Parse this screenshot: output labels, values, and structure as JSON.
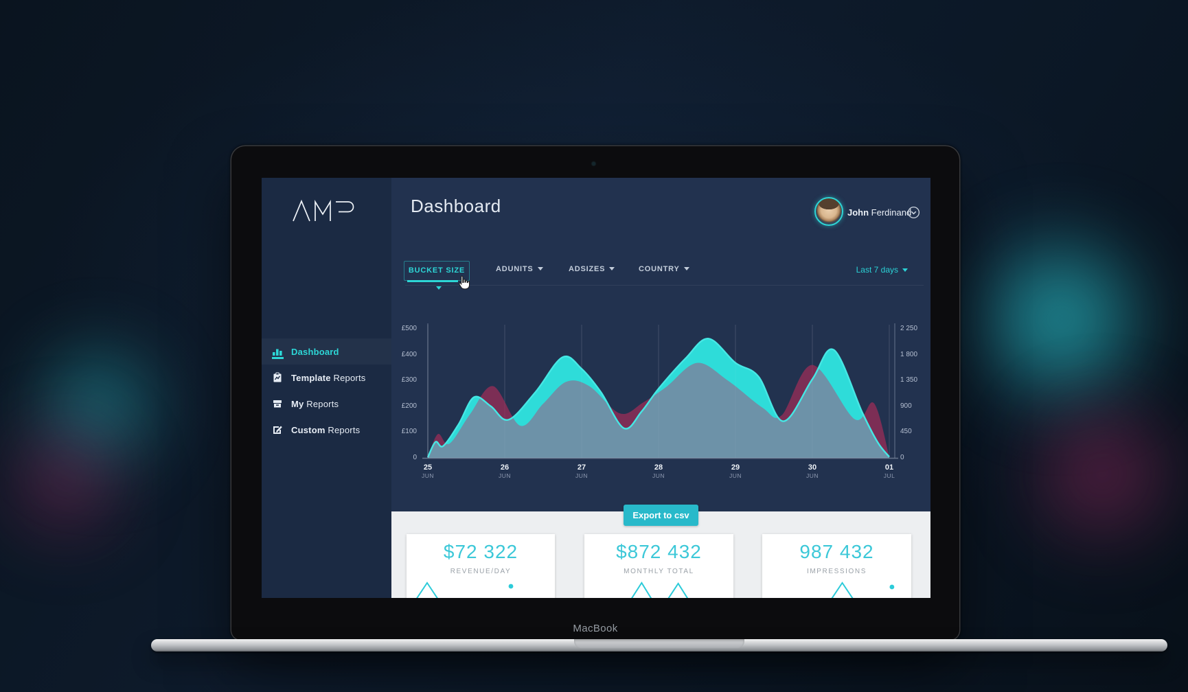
{
  "device": {
    "label": "MacBook"
  },
  "app": {
    "sidebar": {
      "logo": "AMP",
      "items": [
        {
          "icon": "bar-chart-icon",
          "bold": "Dashboard",
          "rest": "",
          "active": true
        },
        {
          "icon": "clipboard-chart-icon",
          "bold": "Template",
          "rest": " Reports",
          "active": false
        },
        {
          "icon": "archive-box-icon",
          "bold": "My",
          "rest": " Reports",
          "active": false
        },
        {
          "icon": "pencil-note-icon",
          "bold": "Custom",
          "rest": " Reports",
          "active": false
        }
      ]
    },
    "header": {
      "title": "Dashboard",
      "user": {
        "first": "John",
        "last": " Ferdinand",
        "menu_icon": "chevron-down-circle-icon"
      }
    },
    "filters": {
      "items": [
        {
          "label": "BUCKET SIZE",
          "active": true
        },
        {
          "label": "ADUNITS",
          "active": false
        },
        {
          "label": "ADSIZES",
          "active": false
        },
        {
          "label": "COUNTRY",
          "active": false
        }
      ],
      "date_range": "Last 7 days"
    },
    "export_label": "Export to csv",
    "stats": [
      {
        "value": "$72 322",
        "label": "REVENUE/DAY",
        "spark": "peak-left-with-dot"
      },
      {
        "value": "$872 432",
        "label": "MONTHLY TOTAL",
        "spark": "double-peak"
      },
      {
        "value": "987 432",
        "label": "IMPRESSIONS",
        "spark": "peak-right-with-dot"
      }
    ]
  },
  "chart_data": {
    "type": "area",
    "title": "",
    "grid": true,
    "legend": false,
    "x_categories": [
      {
        "day": "25",
        "month": "JUN"
      },
      {
        "day": "26",
        "month": "JUN"
      },
      {
        "day": "27",
        "month": "JUN"
      },
      {
        "day": "28",
        "month": "JUN"
      },
      {
        "day": "29",
        "month": "JUN"
      },
      {
        "day": "30",
        "month": "JUN"
      },
      {
        "day": "01",
        "month": "JUL"
      }
    ],
    "y_left_axis": {
      "labels": [
        "£500",
        "£400",
        "£300",
        "£200",
        "£100",
        "0"
      ],
      "max": 500,
      "unit": "£"
    },
    "y_right_axis": {
      "labels": [
        "2 250",
        "1 800",
        "1 350",
        "900",
        "450",
        "0"
      ],
      "max": 2250
    },
    "series": [
      {
        "name": "secondary-magenta",
        "color": "#7c2e55",
        "points": [
          [
            0,
            2
          ],
          [
            0.13,
            92
          ],
          [
            0.28,
            55
          ],
          [
            0.55,
            170
          ],
          [
            0.85,
            278
          ],
          [
            1.2,
            125
          ],
          [
            1.5,
            210
          ],
          [
            1.8,
            295
          ],
          [
            2.1,
            278
          ],
          [
            2.5,
            172
          ],
          [
            2.8,
            215
          ],
          [
            3.1,
            275
          ],
          [
            3.5,
            368
          ],
          [
            3.9,
            300
          ],
          [
            4.35,
            195
          ],
          [
            4.6,
            165
          ],
          [
            5.0,
            360
          ],
          [
            5.55,
            150
          ],
          [
            5.8,
            212
          ],
          [
            6,
            4
          ]
        ]
      },
      {
        "name": "primary-teal",
        "color": "#2edcd9",
        "line_color": "#46e7e4",
        "points": [
          [
            0,
            2
          ],
          [
            0.1,
            62
          ],
          [
            0.2,
            46
          ],
          [
            0.4,
            130
          ],
          [
            0.6,
            235
          ],
          [
            0.82,
            200
          ],
          [
            1.05,
            148
          ],
          [
            1.4,
            255
          ],
          [
            1.75,
            390
          ],
          [
            2.0,
            345
          ],
          [
            2.25,
            255
          ],
          [
            2.55,
            115
          ],
          [
            2.78,
            180
          ],
          [
            3.0,
            268
          ],
          [
            3.35,
            385
          ],
          [
            3.65,
            462
          ],
          [
            4.0,
            368
          ],
          [
            4.3,
            315
          ],
          [
            4.62,
            142
          ],
          [
            5.0,
            305
          ],
          [
            5.28,
            418
          ],
          [
            5.65,
            175
          ],
          [
            5.85,
            60
          ],
          [
            6,
            4
          ]
        ]
      }
    ],
    "overlap_color": "#6d92a8",
    "grid_color": "rgba(255,255,255,0.10)",
    "axis_color": "rgba(186,197,215,0.45)"
  }
}
